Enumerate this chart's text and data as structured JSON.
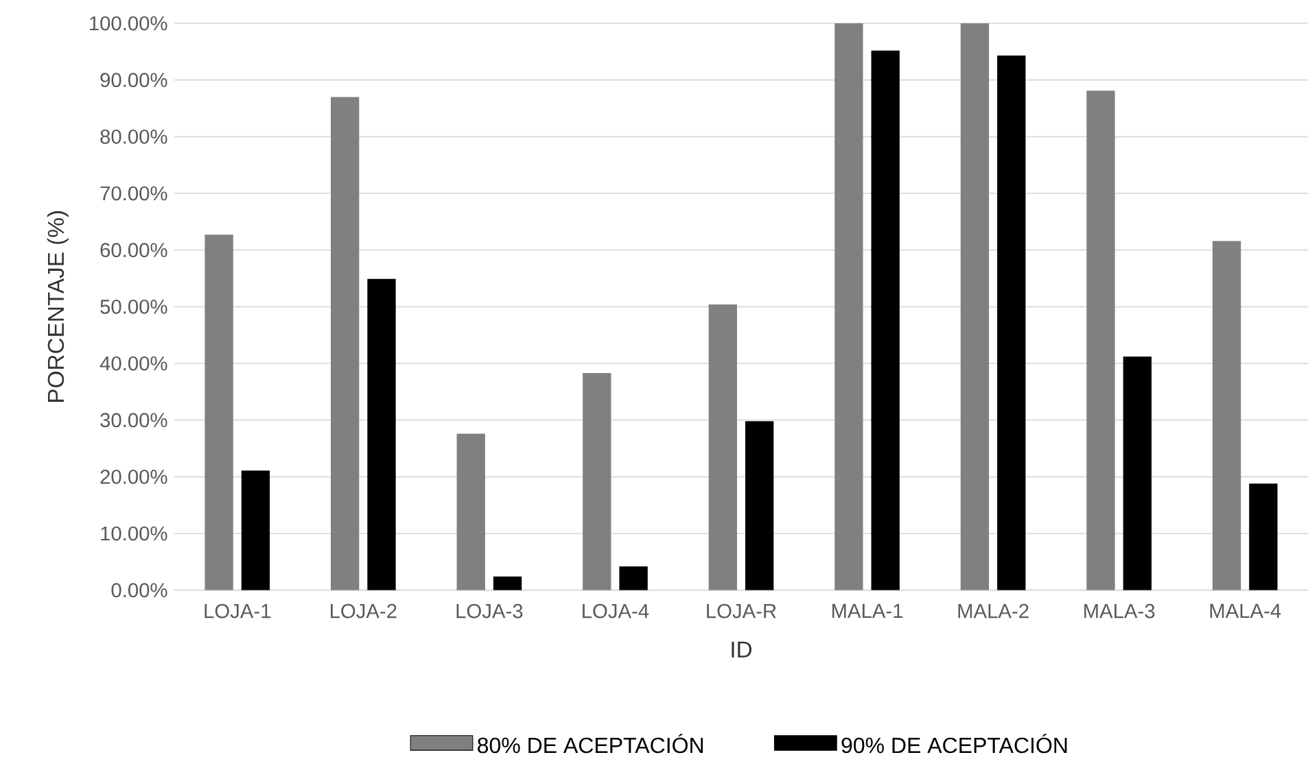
{
  "chart_data": {
    "type": "bar",
    "xlabel": "ID",
    "ylabel": "PORCENTAJE (%)",
    "categories": [
      "LOJA-1",
      "LOJA-2",
      "LOJA-3",
      "LOJA-4",
      "LOJA-R",
      "MALA-1",
      "MALA-2",
      "MALA-3",
      "MALA-4"
    ],
    "series": [
      {
        "name": "80% DE ACEPTACIÓN",
        "color": "#808080",
        "values": [
          62.7,
          87.0,
          27.6,
          38.3,
          50.4,
          100,
          100,
          88.1,
          61.6
        ]
      },
      {
        "name": "90% DE ACEPTACIÓN",
        "color": "#000000",
        "values": [
          21.1,
          54.9,
          2.4,
          4.2,
          29.8,
          95.2,
          94.3,
          41.2,
          18.8
        ]
      }
    ],
    "ylim": [
      0,
      100
    ],
    "yticks": [
      {
        "value": 0,
        "label": "0.00%"
      },
      {
        "value": 10,
        "label": "10.00%"
      },
      {
        "value": 20,
        "label": "20.00%"
      },
      {
        "value": 30,
        "label": "30.00%"
      },
      {
        "value": 40,
        "label": "40.00%"
      },
      {
        "value": 50,
        "label": "50.00%"
      },
      {
        "value": 60,
        "label": "60.00%"
      },
      {
        "value": 70,
        "label": "70.00%"
      },
      {
        "value": 80,
        "label": "80.00%"
      },
      {
        "value": 90,
        "label": "90.00%"
      },
      {
        "value": 100,
        "label": "100.00%"
      }
    ],
    "grid": "y",
    "legend": "bottom"
  }
}
